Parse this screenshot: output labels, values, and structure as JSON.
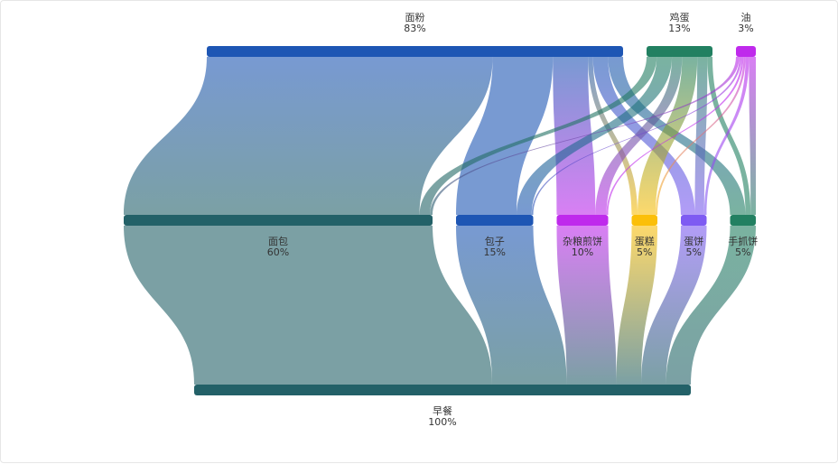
{
  "chart_data": {
    "type": "sankey",
    "levels": [
      [
        {
          "id": "flour",
          "name": "面粉",
          "percent": "83%",
          "value": 83,
          "color": "#1e56b4"
        },
        {
          "id": "egg",
          "name": "鸡蛋",
          "percent": "13%",
          "value": 13,
          "color": "#228061"
        },
        {
          "id": "oil",
          "name": "油",
          "percent": "3%",
          "value": 3,
          "color": "#bf2aec"
        }
      ],
      [
        {
          "id": "bread",
          "name": "面包",
          "percent": "60%",
          "value": 60,
          "color": "#236168"
        },
        {
          "id": "baozi",
          "name": "包子",
          "percent": "15%",
          "value": 15,
          "color": "#1e56b4"
        },
        {
          "id": "jianbing",
          "name": "杂粮煎饼",
          "percent": "10%",
          "value": 10,
          "color": "#bf2aec"
        },
        {
          "id": "cake",
          "name": "蛋糕",
          "percent": "5%",
          "value": 5,
          "color": "#fbbf09"
        },
        {
          "id": "danbing",
          "name": "蛋饼",
          "percent": "5%",
          "value": 5,
          "color": "#7e5bf2"
        },
        {
          "id": "shouzhua",
          "name": "手抓饼",
          "percent": "5%",
          "value": 5,
          "color": "#228061"
        }
      ],
      [
        {
          "id": "breakfast",
          "name": "早餐",
          "percent": "100%",
          "value": 100,
          "color": "#236168"
        }
      ]
    ],
    "links": [
      {
        "source": "flour",
        "target": "bread",
        "value": 57
      },
      {
        "source": "flour",
        "target": "baozi",
        "value": 12
      },
      {
        "source": "flour",
        "target": "jianbing",
        "value": 7
      },
      {
        "source": "flour",
        "target": "cake",
        "value": 1
      },
      {
        "source": "flour",
        "target": "danbing",
        "value": 3
      },
      {
        "source": "flour",
        "target": "shouzhua",
        "value": 3
      },
      {
        "source": "egg",
        "target": "bread",
        "value": 2
      },
      {
        "source": "egg",
        "target": "baozi",
        "value": 3
      },
      {
        "source": "egg",
        "target": "jianbing",
        "value": 2
      },
      {
        "source": "egg",
        "target": "cake",
        "value": 3
      },
      {
        "source": "egg",
        "target": "danbing",
        "value": 2
      },
      {
        "source": "egg",
        "target": "shouzhua",
        "value": 1
      },
      {
        "source": "oil",
        "target": "bread",
        "value": 0.5
      },
      {
        "source": "oil",
        "target": "baozi",
        "value": 0.3
      },
      {
        "source": "oil",
        "target": "jianbing",
        "value": 0.3
      },
      {
        "source": "oil",
        "target": "cake",
        "value": 0.3
      },
      {
        "source": "oil",
        "target": "danbing",
        "value": 0.5
      },
      {
        "source": "oil",
        "target": "shouzhua",
        "value": 1
      },
      {
        "source": "bread",
        "target": "breakfast",
        "value": 60
      },
      {
        "source": "baozi",
        "target": "breakfast",
        "value": 15
      },
      {
        "source": "jianbing",
        "target": "breakfast",
        "value": 10
      },
      {
        "source": "cake",
        "target": "breakfast",
        "value": 5
      },
      {
        "source": "danbing",
        "target": "breakfast",
        "value": 5
      },
      {
        "source": "shouzhua",
        "target": "breakfast",
        "value": 5
      }
    ]
  }
}
